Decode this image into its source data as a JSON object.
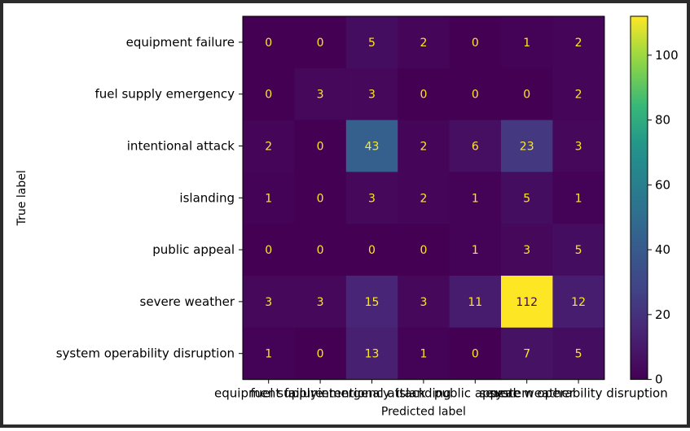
{
  "chart_data": {
    "type": "heatmap",
    "title": "",
    "xlabel": "Predicted label",
    "ylabel": "True label",
    "row_labels": [
      "equipment failure",
      "fuel supply emergency",
      "intentional attack",
      "islanding",
      "public appeal",
      "severe weather",
      "system operability disruption"
    ],
    "col_labels": [
      "equipment failure",
      "fuel supply emergency",
      "intentional attack",
      "islanding",
      "public appeal",
      "severe weather",
      "system operability disruption"
    ],
    "values": [
      [
        0,
        0,
        5,
        2,
        0,
        1,
        2
      ],
      [
        0,
        3,
        3,
        0,
        0,
        0,
        2
      ],
      [
        2,
        0,
        43,
        2,
        6,
        23,
        3
      ],
      [
        1,
        0,
        3,
        2,
        1,
        5,
        1
      ],
      [
        0,
        0,
        0,
        0,
        1,
        3,
        5
      ],
      [
        3,
        3,
        15,
        3,
        11,
        112,
        12
      ],
      [
        1,
        0,
        13,
        1,
        0,
        7,
        5
      ]
    ],
    "colormap": "viridis",
    "vmin": 0,
    "vmax": 112,
    "colorbar_ticks": [
      "0",
      "20",
      "40",
      "60",
      "80",
      "100"
    ],
    "colorbar_tick_values": [
      0,
      20,
      40,
      60,
      80,
      100
    ],
    "text_color_low": "#fde725",
    "text_color_high": "#440154",
    "grid": false
  }
}
